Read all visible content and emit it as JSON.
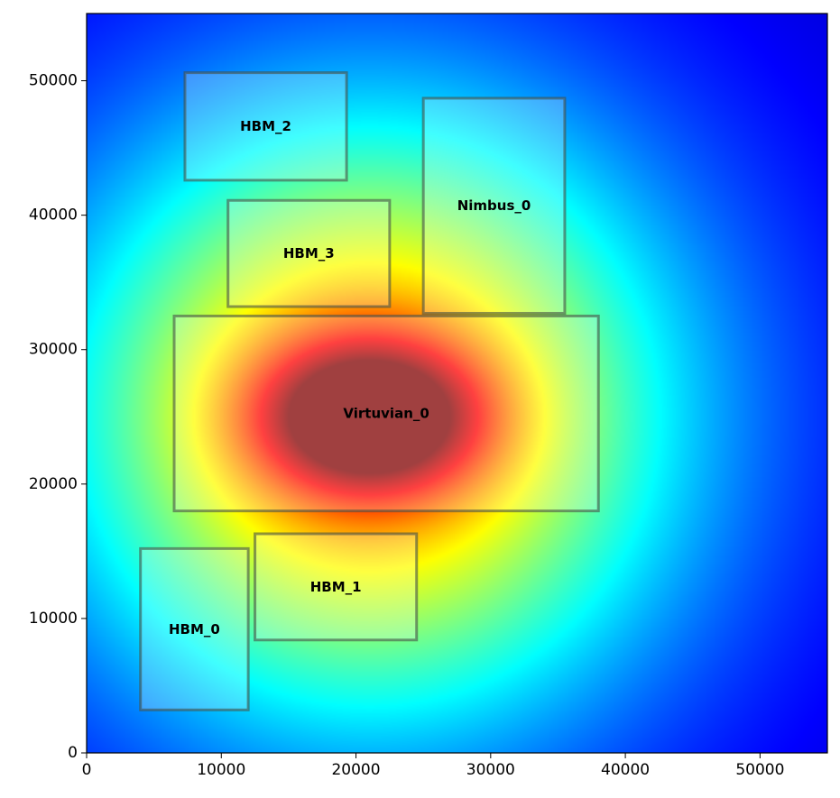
{
  "chart_data": {
    "type": "heatmap",
    "title": "",
    "xlabel": "",
    "ylabel": "",
    "xlim": [
      0,
      55000
    ],
    "ylim": [
      0,
      55000
    ],
    "x_ticks": [
      0,
      10000,
      20000,
      30000,
      40000,
      50000
    ],
    "y_ticks": [
      0,
      10000,
      20000,
      30000,
      40000,
      50000
    ],
    "x_tick_labels": [
      "0",
      "10000",
      "20000",
      "30000",
      "40000",
      "50000"
    ],
    "y_tick_labels": [
      "0",
      "10000",
      "20000",
      "30000",
      "40000",
      "50000"
    ],
    "grid": false,
    "colormap": "jet",
    "heat_peak": {
      "x": 21000,
      "y": 25000
    },
    "blocks": [
      {
        "name": "Virtuvian_0",
        "x0": 6500,
        "y0": 18000,
        "x1": 38000,
        "y1": 32500
      },
      {
        "name": "HBM_0",
        "x0": 4000,
        "y0": 3200,
        "x1": 12000,
        "y1": 15200
      },
      {
        "name": "HBM_1",
        "x0": 12500,
        "y0": 8400,
        "x1": 24500,
        "y1": 16300
      },
      {
        "name": "HBM_2",
        "x0": 7300,
        "y0": 42600,
        "x1": 19300,
        "y1": 50600
      },
      {
        "name": "HBM_3",
        "x0": 10500,
        "y0": 33200,
        "x1": 22500,
        "y1": 41100
      },
      {
        "name": "Nimbus_0",
        "x0": 25000,
        "y0": 32700,
        "x1": 35500,
        "y1": 48700
      }
    ]
  }
}
